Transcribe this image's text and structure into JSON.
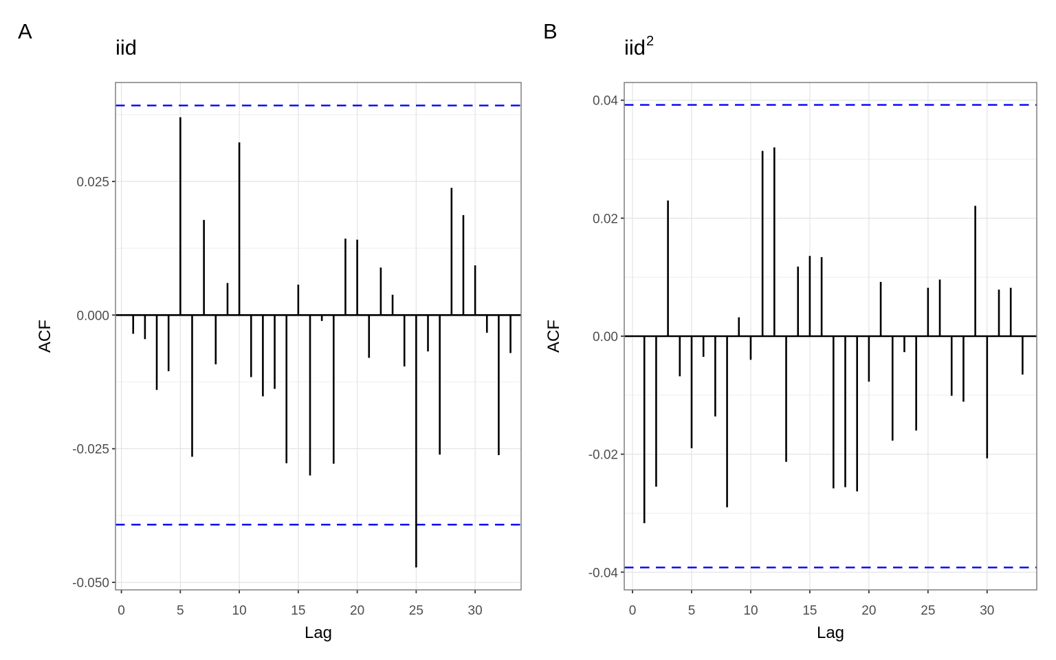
{
  "page": {
    "background": "#ffffff"
  },
  "colors": {
    "bar": "#000000",
    "zero_line": "#000000",
    "conf_line": "#0000f5",
    "grid_major": "#e3e3e3",
    "grid_minor": "#efefef",
    "panel_border": "#7f7f7f",
    "tick_mark": "#333333",
    "tick_label": "#4d4d4d",
    "text": "#000000"
  },
  "chart_data": [
    {
      "type": "bar",
      "subtype": "acf-lollipop",
      "panel_label": "A",
      "title": "iid",
      "title_superscript": "",
      "xlabel": "Lag",
      "ylabel": "ACF",
      "legend_position": "none",
      "grid": {
        "y_major": true,
        "y_minor": true,
        "x_major": true,
        "x_minor": false
      },
      "xlim": [
        -0.5,
        33.9
      ],
      "ylim": [
        -0.0514,
        0.0435
      ],
      "xticks": [
        0,
        5,
        10,
        15,
        20,
        25,
        30
      ],
      "yticks": {
        "values": [
          0.025,
          0.0,
          -0.025,
          -0.05
        ],
        "labels": [
          "0.025",
          "0.000",
          "-0.025",
          "-0.050"
        ]
      },
      "yminor": [
        0.0375,
        0.0125,
        -0.0125,
        -0.0375
      ],
      "conf_upper": 0.0392,
      "conf_lower": -0.0392,
      "lags": [
        1,
        2,
        3,
        4,
        5,
        6,
        7,
        8,
        9,
        10,
        11,
        12,
        13,
        14,
        15,
        16,
        17,
        18,
        19,
        20,
        21,
        22,
        23,
        24,
        25,
        26,
        27,
        28,
        29,
        30,
        31,
        32,
        33
      ],
      "values": [
        -0.0035,
        -0.0045,
        -0.014,
        -0.0105,
        0.037,
        -0.0265,
        0.0178,
        -0.0092,
        0.006,
        0.0323,
        -0.0116,
        -0.0152,
        -0.0138,
        -0.0277,
        0.0057,
        -0.03,
        -0.0011,
        -0.0278,
        0.0143,
        0.0141,
        -0.008,
        0.0089,
        0.0038,
        -0.0096,
        -0.0472,
        -0.0068,
        -0.0261,
        0.0238,
        0.0187,
        0.0093,
        -0.0033,
        -0.0262,
        -0.0071
      ]
    },
    {
      "type": "bar",
      "subtype": "acf-lollipop",
      "panel_label": "B",
      "title": "iid",
      "title_superscript": "2",
      "xlabel": "Lag",
      "ylabel": "ACF",
      "legend_position": "none",
      "grid": {
        "y_major": true,
        "y_minor": true,
        "x_major": true,
        "x_minor": false
      },
      "xlim": [
        -0.7,
        34.2
      ],
      "ylim": [
        -0.043,
        0.043
      ],
      "xticks": [
        0,
        5,
        10,
        15,
        20,
        25,
        30
      ],
      "yticks": {
        "values": [
          0.04,
          0.02,
          0.0,
          -0.02,
          -0.04
        ],
        "labels": [
          "0.04",
          "0.02",
          "0.00",
          "-0.02",
          "-0.04"
        ]
      },
      "yminor": [
        0.03,
        0.01,
        -0.01,
        -0.03
      ],
      "conf_upper": 0.0392,
      "conf_lower": -0.0392,
      "lags": [
        1,
        2,
        3,
        4,
        5,
        6,
        7,
        8,
        9,
        10,
        11,
        12,
        13,
        14,
        15,
        16,
        17,
        18,
        19,
        20,
        21,
        22,
        23,
        24,
        25,
        26,
        27,
        28,
        29,
        30,
        31,
        32,
        33
      ],
      "values": [
        -0.0317,
        -0.0255,
        0.023,
        -0.0068,
        -0.019,
        -0.0035,
        -0.0136,
        -0.029,
        0.0032,
        -0.004,
        0.0314,
        0.032,
        -0.0213,
        0.0118,
        0.0136,
        0.0134,
        -0.0258,
        -0.0256,
        -0.0263,
        -0.0077,
        0.0092,
        -0.0177,
        -0.0027,
        -0.016,
        0.0082,
        0.0096,
        -0.0101,
        -0.0111,
        0.0221,
        -0.0207,
        0.0079,
        0.0082,
        -0.0065
      ]
    }
  ]
}
